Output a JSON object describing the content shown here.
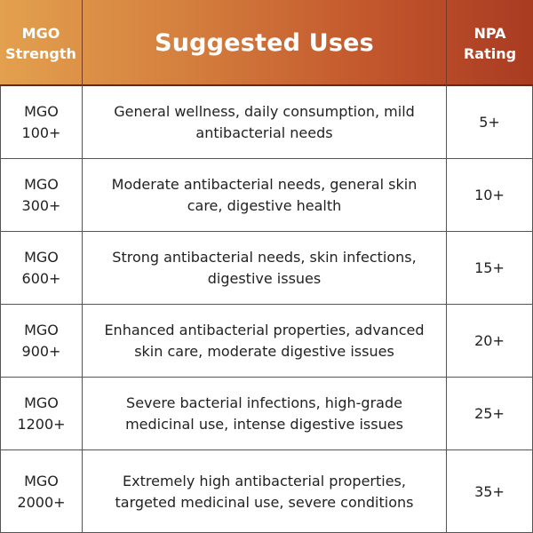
{
  "header": {
    "strength_line1": "MGO",
    "strength_line2": "Strength",
    "uses": "Suggested Uses",
    "npa_line1": "NPA",
    "npa_line2": "Rating"
  },
  "rows": [
    {
      "mgo_line1": "MGO",
      "mgo_line2": "100+",
      "uses_line1": "General wellness, daily consumption, mild",
      "uses_line2": "antibacterial needs",
      "npa": "5+"
    },
    {
      "mgo_line1": "MGO",
      "mgo_line2": "300+",
      "uses_line1": "Moderate antibacterial needs, general skin",
      "uses_line2": "care, digestive health",
      "npa": "10+"
    },
    {
      "mgo_line1": "MGO",
      "mgo_line2": "600+",
      "uses_line1": "Strong antibacterial needs, skin infections,",
      "uses_line2": "digestive issues",
      "npa": "15+"
    },
    {
      "mgo_line1": "MGO",
      "mgo_line2": "900+",
      "uses_line1": "Enhanced antibacterial properties, advanced",
      "uses_line2": "skin care, moderate digestive issues",
      "npa": "20+"
    },
    {
      "mgo_line1": "MGO",
      "mgo_line2": "1200+",
      "uses_line1": "Severe bacterial infections, high-grade",
      "uses_line2": "medicinal use, intense digestive issues",
      "npa": "25+"
    },
    {
      "mgo_line1": "MGO",
      "mgo_line2": "2000+",
      "uses_line1": "Extremely high antibacterial properties,",
      "uses_line2": "targeted medicinal use, severe conditions",
      "npa": "35+"
    }
  ]
}
